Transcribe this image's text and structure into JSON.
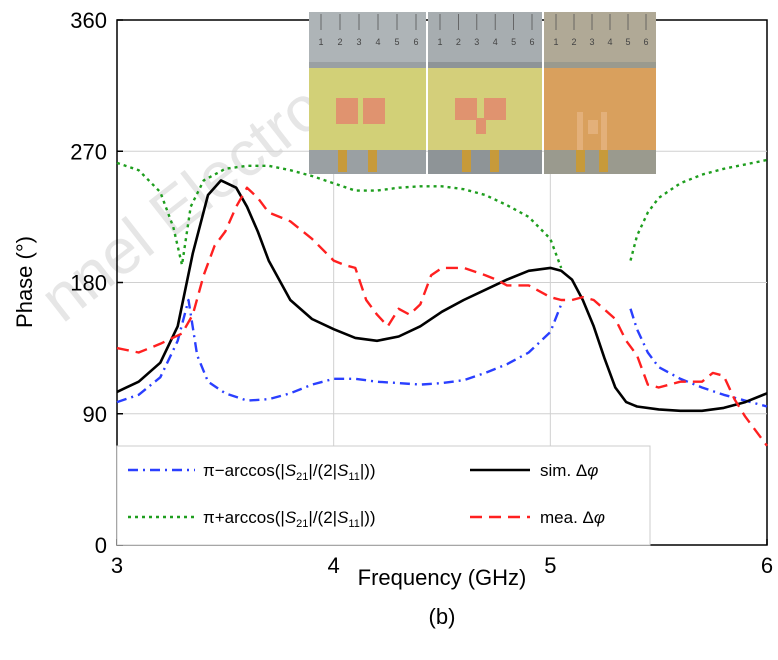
{
  "watermark": "nnel Electron",
  "panel_label": "(b)",
  "chart_data": {
    "type": "line",
    "xlabel": "Frequency (GHz)",
    "ylabel": "Phase (°)",
    "xlim": [
      3,
      6
    ],
    "ylim": [
      0,
      360
    ],
    "xticks": [
      "3",
      "4",
      "5",
      "6"
    ],
    "yticks": [
      "0",
      "90",
      "180",
      "270",
      "360"
    ],
    "grid": true,
    "legend_position": "bottom",
    "series": [
      {
        "name": "π−arccos(|S21|/(2|S11|))",
        "color": "#2a3fff",
        "dash": "dashdot",
        "segments": [
          {
            "x": [
              3.0,
              3.1,
              3.2,
              3.28,
              3.33,
              3.37,
              3.42,
              3.5,
              3.6,
              3.7,
              3.8,
              3.9,
              4.0,
              4.1,
              4.2,
              4.3,
              4.4,
              4.5,
              4.6,
              4.7,
              4.8,
              4.9,
              5.0,
              5.05
            ],
            "y": [
              98,
              103,
              115,
              140,
              168,
              130,
              112,
              104,
              99,
              100,
              104,
              110,
              114,
              114,
              112,
              111,
              110,
              111,
              113,
              118,
              124,
              132,
              146,
              165
            ]
          },
          {
            "x": [
              5.37,
              5.4,
              5.45,
              5.5,
              5.6,
              5.7,
              5.8,
              5.9,
              6.0
            ],
            "y": [
              162,
              148,
              132,
              122,
              114,
              108,
              103,
              99,
              95
            ]
          }
        ]
      },
      {
        "name": "π+arccos(|S21|/(2|S11|))",
        "color": "#1e9e1e",
        "dash": "dotted",
        "segments": [
          {
            "x": [
              3.0,
              3.1,
              3.2,
              3.26,
              3.3,
              3.34,
              3.4,
              3.5,
              3.6,
              3.7,
              3.8,
              3.9,
              4.0,
              4.1,
              4.2,
              4.3,
              4.4,
              4.5,
              4.6,
              4.7,
              4.8,
              4.9,
              5.0,
              5.05
            ],
            "y": [
              262,
              257,
              242,
              218,
              192,
              232,
              250,
              258,
              260,
              260,
              257,
              253,
              248,
              243,
              243,
              245,
              246,
              246,
              244,
              240,
              233,
              225,
              210,
              190
            ]
          },
          {
            "x": [
              5.37,
              5.4,
              5.45,
              5.5,
              5.6,
              5.7,
              5.8,
              5.9,
              6.0
            ],
            "y": [
              195,
              212,
              228,
              238,
              248,
              254,
              258,
              261,
              264
            ]
          }
        ]
      },
      {
        "name": "sim. Δφ",
        "color": "#000000",
        "dash": "solid",
        "segments": [
          {
            "x": [
              3.0,
              3.1,
              3.2,
              3.28,
              3.35,
              3.42,
              3.48,
              3.55,
              3.6,
              3.65,
              3.7,
              3.8,
              3.9,
              4.0,
              4.1,
              4.2,
              4.3,
              4.4,
              4.5,
              4.6,
              4.7,
              4.8,
              4.9,
              5.0,
              5.05,
              5.1,
              5.15,
              5.2,
              5.25,
              5.3,
              5.35,
              5.4,
              5.5,
              5.6,
              5.7,
              5.8,
              5.9,
              6.0
            ],
            "y": [
              105,
              112,
              125,
              150,
              200,
              240,
              250,
              245,
              232,
              215,
              195,
              168,
              155,
              148,
              142,
              140,
              143,
              150,
              160,
              168,
              175,
              182,
              188,
              190,
              188,
              182,
              168,
              150,
              128,
              108,
              98,
              95,
              93,
              92,
              92,
              94,
              98,
              104
            ]
          }
        ]
      },
      {
        "name": "mea. Δφ",
        "color": "#ff2020",
        "dash": "dashed",
        "segments": [
          {
            "x": [
              3.0,
              3.1,
              3.2,
              3.3,
              3.35,
              3.4,
              3.45,
              3.5,
              3.55,
              3.6,
              3.65,
              3.7,
              3.75,
              3.8,
              3.9,
              4.0,
              4.05,
              4.1,
              4.15,
              4.2,
              4.25,
              4.3,
              4.35,
              4.4,
              4.45,
              4.5,
              4.6,
              4.7,
              4.75,
              4.8,
              4.9,
              5.0,
              5.05,
              5.1,
              5.15,
              5.2,
              5.3,
              5.35,
              5.4,
              5.45,
              5.5,
              5.6,
              5.7,
              5.75,
              5.8,
              5.85,
              5.9,
              6.0
            ],
            "y": [
              135,
              132,
              138,
              145,
              158,
              185,
              205,
              215,
              232,
              245,
              238,
              228,
              225,
              222,
              210,
              195,
              192,
              190,
              168,
              158,
              150,
              162,
              158,
              165,
              185,
              190,
              190,
              185,
              182,
              178,
              178,
              170,
              168,
              168,
              170,
              168,
              155,
              140,
              130,
              110,
              108,
              112,
              112,
              118,
              116,
              100,
              88,
              68
            ]
          }
        ]
      }
    ]
  },
  "legend": [
    {
      "prefix": "π−arccos(|",
      "s1": "S",
      "sub1": "21",
      "mid": "|/(2|",
      "s2": "S",
      "sub2": "11",
      "suffix": "|))"
    },
    {
      "prefix": "π+arccos(|",
      "s1": "S",
      "sub1": "21",
      "mid": "|/(2|",
      "s2": "S",
      "sub2": "11",
      "suffix": "|))"
    },
    {
      "text": "sim. Δ",
      "sym": "φ"
    },
    {
      "text": "mea. Δ",
      "sym": "φ"
    }
  ],
  "inset_photos": {
    "ruler_marks": [
      "1",
      "2",
      "3",
      "4",
      "5",
      "6"
    ]
  }
}
